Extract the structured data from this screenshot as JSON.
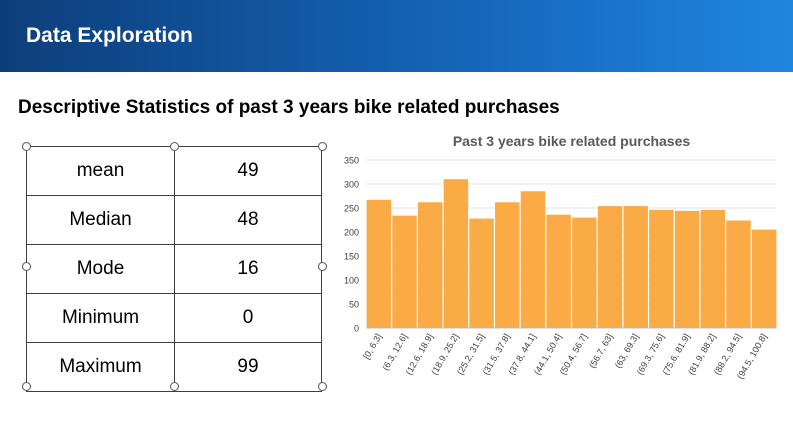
{
  "header": {
    "title": "Data Exploration"
  },
  "section": {
    "title": "Descriptive Statistics of past 3 years bike related purchases"
  },
  "stats": [
    {
      "label": "mean",
      "value": "49"
    },
    {
      "label": "Median",
      "value": "48"
    },
    {
      "label": "Mode",
      "value": "16"
    },
    {
      "label": "Minimum",
      "value": "0"
    },
    {
      "label": "Maximum",
      "value": "99"
    }
  ],
  "colors": {
    "header_start": "#0d3e7a",
    "header_end": "#1f86e0",
    "bar": "#fbab45"
  },
  "chart_data": {
    "type": "bar",
    "title": "Past 3 years bike related purchases",
    "categories": [
      "[0, 6.3]",
      "(6.3, 12.6]",
      "(12.6, 18.9]",
      "(18.9, 25.2]",
      "(25.2, 31.5]",
      "(31.5, 37.8]",
      "(37.8, 44.1]",
      "(44.1, 50.4]",
      "(50.4, 56.7]",
      "(56.7, 63]",
      "(63, 69.3]",
      "(69.3, 75.6]",
      "(75.6, 81.9]",
      "(81.9, 88.2]",
      "(88.2, 94.5]",
      "(94.5, 100.8]"
    ],
    "values": [
      267,
      234,
      262,
      310,
      228,
      262,
      285,
      236,
      230,
      254,
      254,
      246,
      244,
      246,
      224,
      205
    ],
    "ylim": [
      0,
      350
    ],
    "yticks": [
      0,
      50,
      100,
      150,
      200,
      250,
      300,
      350
    ],
    "xlabel": "",
    "ylabel": "",
    "grid": true,
    "legend": "none"
  }
}
